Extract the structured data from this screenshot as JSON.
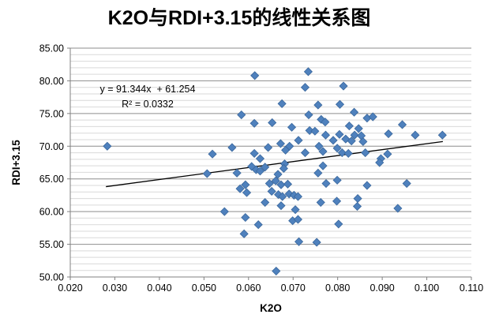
{
  "page": {
    "background": "#FFFFFF"
  },
  "chart_data": {
    "type": "scatter",
    "title": "K2O与RDI+3.15的线性关系图",
    "xlabel": "K2O",
    "ylabel": "RDI+3.15",
    "xlim": [
      0.02,
      0.11
    ],
    "ylim": [
      50,
      85
    ],
    "x_tick_labels": [
      "0.020",
      "0.030",
      "0.040",
      "0.050",
      "0.060",
      "0.070",
      "0.080",
      "0.090",
      "0.100",
      "0.110"
    ],
    "x_tick_values": [
      0.02,
      0.03,
      0.04,
      0.05,
      0.06,
      0.07,
      0.08,
      0.09,
      0.1,
      0.11
    ],
    "y_tick_labels": [
      "50.00",
      "55.00",
      "60.00",
      "65.00",
      "70.00",
      "75.00",
      "80.00",
      "85.00"
    ],
    "y_tick_values": [
      50,
      55,
      60,
      65,
      70,
      75,
      80,
      85
    ],
    "y_minor_step": 1,
    "grid": {
      "horizontal_major": true,
      "horizontal_minor": true,
      "vertical": false
    },
    "legend_position": "none",
    "annotation": {
      "equation": "y = 91.344x  + 61.254",
      "r_squared": "R² = 0.0332"
    },
    "trendline": {
      "type": "linear",
      "slope": 91.344,
      "intercept": 61.254,
      "x_start": 0.028,
      "x_end": 0.1036,
      "color": "#000000"
    },
    "marker": {
      "shape": "diamond",
      "fill": "#4F81BD",
      "border": "#3A679C",
      "size": 10
    },
    "colors": {
      "major_grid": "#8E8E8E",
      "minor_grid": "#D9D9D9",
      "axis": "#808080",
      "text": "#000000",
      "accent": "#4F81BD"
    },
    "series": [
      {
        "name": "RDI+3.15",
        "points": [
          [
            0.0283,
            70.0
          ],
          [
            0.0614,
            80.8
          ],
          [
            0.0734,
            81.4
          ],
          [
            0.0727,
            79.0
          ],
          [
            0.0813,
            79.2
          ],
          [
            0.0675,
            76.5
          ],
          [
            0.0756,
            76.3
          ],
          [
            0.0805,
            76.4
          ],
          [
            0.0584,
            74.8
          ],
          [
            0.0735,
            74.8
          ],
          [
            0.0837,
            75.2
          ],
          [
            0.0613,
            73.5
          ],
          [
            0.0653,
            73.6
          ],
          [
            0.0697,
            72.9
          ],
          [
            0.0763,
            74.1
          ],
          [
            0.0772,
            73.7
          ],
          [
            0.0866,
            74.3
          ],
          [
            0.0879,
            74.5
          ],
          [
            0.0945,
            73.3
          ],
          [
            0.0826,
            73.1
          ],
          [
            0.0847,
            72.7
          ],
          [
            0.0737,
            72.4
          ],
          [
            0.0749,
            72.3
          ],
          [
            0.0773,
            71.7
          ],
          [
            0.0804,
            71.8
          ],
          [
            0.0838,
            71.7
          ],
          [
            0.0853,
            71.6
          ],
          [
            0.0818,
            71.1
          ],
          [
            0.0831,
            70.8
          ],
          [
            0.0857,
            70.7
          ],
          [
            0.0914,
            71.9
          ],
          [
            0.0974,
            71.7
          ],
          [
            0.1035,
            71.7
          ],
          [
            0.079,
            70.9
          ],
          [
            0.0712,
            70.9
          ],
          [
            0.0563,
            69.8
          ],
          [
            0.0644,
            69.8
          ],
          [
            0.0672,
            70.4
          ],
          [
            0.0683,
            69.4
          ],
          [
            0.0692,
            70.0
          ],
          [
            0.0758,
            70.0
          ],
          [
            0.0767,
            69.2
          ],
          [
            0.0799,
            69.7
          ],
          [
            0.0519,
            68.8
          ],
          [
            0.0613,
            68.9
          ],
          [
            0.0626,
            68.1
          ],
          [
            0.0727,
            69.0
          ],
          [
            0.081,
            69.0
          ],
          [
            0.0824,
            68.9
          ],
          [
            0.0862,
            69.0
          ],
          [
            0.0897,
            68.1
          ],
          [
            0.0912,
            68.8
          ],
          [
            0.0894,
            67.5
          ],
          [
            0.0681,
            67.3
          ],
          [
            0.0767,
            67.0
          ],
          [
            0.0507,
            65.8
          ],
          [
            0.0574,
            65.9
          ],
          [
            0.0607,
            66.9
          ],
          [
            0.0617,
            66.4
          ],
          [
            0.0626,
            66.2
          ],
          [
            0.0637,
            66.8
          ],
          [
            0.0666,
            65.7
          ],
          [
            0.0679,
            66.6
          ],
          [
            0.0756,
            65.9
          ],
          [
            0.0593,
            64.1
          ],
          [
            0.0581,
            63.5
          ],
          [
            0.0647,
            64.3
          ],
          [
            0.0661,
            64.7
          ],
          [
            0.0673,
            64.1
          ],
          [
            0.0688,
            64.2
          ],
          [
            0.0774,
            64.3
          ],
          [
            0.0799,
            64.8
          ],
          [
            0.0866,
            64.0
          ],
          [
            0.0955,
            64.3
          ],
          [
            0.0596,
            62.9
          ],
          [
            0.0652,
            63.1
          ],
          [
            0.0667,
            62.6
          ],
          [
            0.0676,
            62.3
          ],
          [
            0.0691,
            62.7
          ],
          [
            0.0702,
            62.5
          ],
          [
            0.0711,
            62.3
          ],
          [
            0.0845,
            62.0
          ],
          [
            0.0637,
            61.4
          ],
          [
            0.0673,
            60.9
          ],
          [
            0.0705,
            60.3
          ],
          [
            0.0546,
            60.0
          ],
          [
            0.0762,
            61.4
          ],
          [
            0.0798,
            61.6
          ],
          [
            0.0844,
            60.8
          ],
          [
            0.0935,
            60.5
          ],
          [
            0.0593,
            59.1
          ],
          [
            0.0622,
            58.0
          ],
          [
            0.0699,
            58.6
          ],
          [
            0.0711,
            58.8
          ],
          [
            0.0802,
            58.1
          ],
          [
            0.059,
            56.6
          ],
          [
            0.0713,
            55.4
          ],
          [
            0.0753,
            55.3
          ],
          [
            0.0662,
            50.9
          ]
        ]
      }
    ]
  }
}
